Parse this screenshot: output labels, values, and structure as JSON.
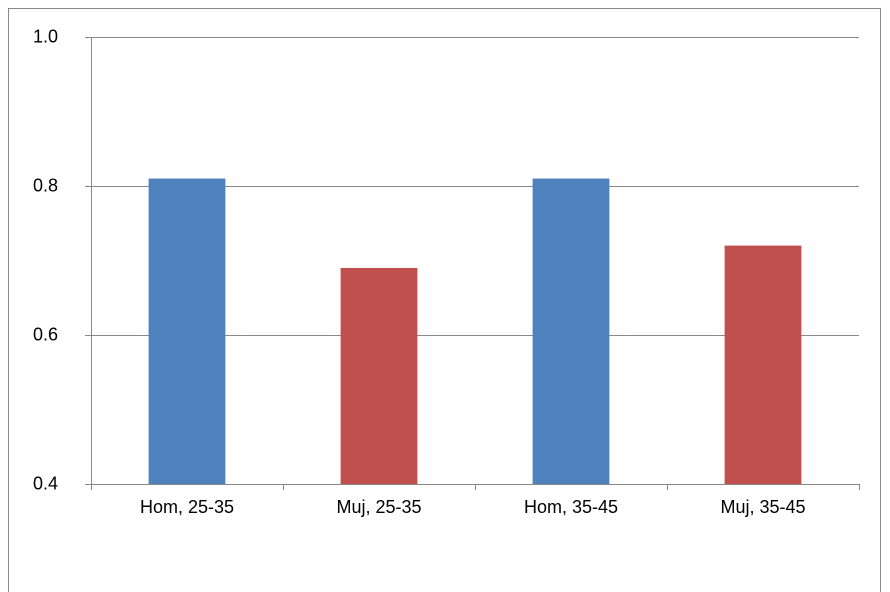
{
  "chart_data": {
    "type": "bar",
    "categories": [
      "Hom, 25-35",
      "Muj, 25-35",
      "Hom, 35-45",
      "Muj, 35-45"
    ],
    "values": [
      0.81,
      0.69,
      0.81,
      0.72
    ],
    "colors": [
      "#4f81bd",
      "#c0504d",
      "#4f81bd",
      "#c0504d"
    ],
    "ylim": [
      0.4,
      1.0
    ],
    "yticks": [
      0.4,
      0.6,
      0.8,
      {
        "value": 1.0,
        "label": "1.0"
      }
    ],
    "grid": true
  }
}
